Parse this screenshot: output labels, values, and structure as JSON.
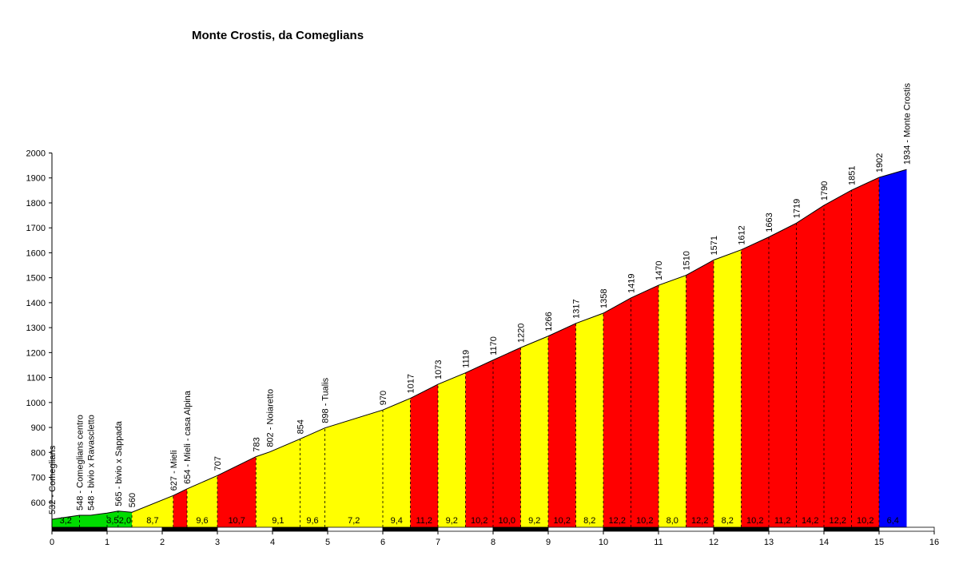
{
  "chart_data": {
    "type": "area",
    "title": "Monte Crostis, da Comeglians",
    "xlabel": "",
    "ylabel": "",
    "xlim": [
      0,
      16
    ],
    "ylim": [
      500,
      2000
    ],
    "x_ticks": [
      "0",
      "1",
      "2",
      "3",
      "4",
      "5",
      "6",
      "7",
      "8",
      "9",
      "10",
      "11",
      "12",
      "13",
      "14",
      "15",
      "16"
    ],
    "y_ticks": [
      "600",
      "700",
      "800",
      "900",
      "1000",
      "1100",
      "1200",
      "1300",
      "1400",
      "1500",
      "1600",
      "1700",
      "1800",
      "1900",
      "2000"
    ],
    "profile": [
      {
        "x": 0.0,
        "y": 532
      },
      {
        "x": 0.5,
        "y": 548
      },
      {
        "x": 0.7,
        "y": 548
      },
      {
        "x": 1.0,
        "y": 557
      },
      {
        "x": 1.2,
        "y": 565
      },
      {
        "x": 1.45,
        "y": 560
      },
      {
        "x": 2.2,
        "y": 627
      },
      {
        "x": 2.45,
        "y": 654
      },
      {
        "x": 3.0,
        "y": 707
      },
      {
        "x": 3.7,
        "y": 783
      },
      {
        "x": 3.95,
        "y": 802
      },
      {
        "x": 4.5,
        "y": 854
      },
      {
        "x": 4.95,
        "y": 898
      },
      {
        "x": 6.0,
        "y": 970
      },
      {
        "x": 6.5,
        "y": 1017
      },
      {
        "x": 7.0,
        "y": 1073
      },
      {
        "x": 7.5,
        "y": 1119
      },
      {
        "x": 8.0,
        "y": 1170
      },
      {
        "x": 8.5,
        "y": 1220
      },
      {
        "x": 9.0,
        "y": 1266
      },
      {
        "x": 9.5,
        "y": 1317
      },
      {
        "x": 10.0,
        "y": 1358
      },
      {
        "x": 10.5,
        "y": 1419
      },
      {
        "x": 11.0,
        "y": 1470
      },
      {
        "x": 11.5,
        "y": 1510
      },
      {
        "x": 12.0,
        "y": 1571
      },
      {
        "x": 12.5,
        "y": 1612
      },
      {
        "x": 13.0,
        "y": 1663
      },
      {
        "x": 13.5,
        "y": 1719
      },
      {
        "x": 14.0,
        "y": 1790
      },
      {
        "x": 14.5,
        "y": 1851
      },
      {
        "x": 15.0,
        "y": 1902
      },
      {
        "x": 15.5,
        "y": 1934
      }
    ],
    "segments": [
      {
        "x0": 0.0,
        "x1": 0.5,
        "color": "#00dd00",
        "grade": "3,2"
      },
      {
        "x0": 0.5,
        "x1": 1.0,
        "color": "#00dd00",
        "grade": ""
      },
      {
        "x0": 1.0,
        "x1": 1.2,
        "color": "#00dd00",
        "grade": "3,5"
      },
      {
        "x0": 1.2,
        "x1": 1.45,
        "color": "#00dd00",
        "grade": "2,0"
      },
      {
        "x0": 1.45,
        "x1": 2.2,
        "color": "#ffff00",
        "grade": "8,7"
      },
      {
        "x0": 2.2,
        "x1": 2.45,
        "color": "#ff0000",
        "grade": ""
      },
      {
        "x0": 2.45,
        "x1": 3.0,
        "color": "#ffff00",
        "grade": "9,6"
      },
      {
        "x0": 3.0,
        "x1": 3.7,
        "color": "#ff0000",
        "grade": "10,7"
      },
      {
        "x0": 3.7,
        "x1": 4.5,
        "color": "#ffff00",
        "grade": "9,1"
      },
      {
        "x0": 4.5,
        "x1": 4.95,
        "color": "#ffff00",
        "grade": "9,6"
      },
      {
        "x0": 4.95,
        "x1": 6.0,
        "color": "#ffff00",
        "grade": "7,2"
      },
      {
        "x0": 6.0,
        "x1": 6.5,
        "color": "#ffff00",
        "grade": "9,4"
      },
      {
        "x0": 6.5,
        "x1": 7.0,
        "color": "#ff0000",
        "grade": "11,2"
      },
      {
        "x0": 7.0,
        "x1": 7.5,
        "color": "#ffff00",
        "grade": "9,2"
      },
      {
        "x0": 7.5,
        "x1": 8.0,
        "color": "#ff0000",
        "grade": "10,2"
      },
      {
        "x0": 8.0,
        "x1": 8.5,
        "color": "#ff0000",
        "grade": "10,0"
      },
      {
        "x0": 8.5,
        "x1": 9.0,
        "color": "#ffff00",
        "grade": "9,2"
      },
      {
        "x0": 9.0,
        "x1": 9.5,
        "color": "#ff0000",
        "grade": "10,2"
      },
      {
        "x0": 9.5,
        "x1": 10.0,
        "color": "#ffff00",
        "grade": "8,2"
      },
      {
        "x0": 10.0,
        "x1": 10.5,
        "color": "#ff0000",
        "grade": "12,2"
      },
      {
        "x0": 10.5,
        "x1": 11.0,
        "color": "#ff0000",
        "grade": "10,2"
      },
      {
        "x0": 11.0,
        "x1": 11.5,
        "color": "#ffff00",
        "grade": "8,0"
      },
      {
        "x0": 11.5,
        "x1": 12.0,
        "color": "#ff0000",
        "grade": "12,2"
      },
      {
        "x0": 12.0,
        "x1": 12.5,
        "color": "#ffff00",
        "grade": "8,2"
      },
      {
        "x0": 12.5,
        "x1": 13.0,
        "color": "#ff0000",
        "grade": "10,2"
      },
      {
        "x0": 13.0,
        "x1": 13.5,
        "color": "#ff0000",
        "grade": "11,2"
      },
      {
        "x0": 13.5,
        "x1": 14.0,
        "color": "#ff0000",
        "grade": "14,2"
      },
      {
        "x0": 14.0,
        "x1": 14.5,
        "color": "#ff0000",
        "grade": "12,2"
      },
      {
        "x0": 14.5,
        "x1": 15.0,
        "color": "#ff0000",
        "grade": "10,2"
      },
      {
        "x0": 15.0,
        "x1": 15.5,
        "color": "#0000ff",
        "grade": "6,4"
      }
    ],
    "point_labels": [
      {
        "x": 0.0,
        "text": "532 - Comeglians"
      },
      {
        "x": 0.5,
        "text": "548 - Comeglians centro"
      },
      {
        "x": 0.7,
        "text": "548 - bivio x Ravascletto"
      },
      {
        "x": 1.2,
        "text": "565 - bivio x Sappada"
      },
      {
        "x": 1.45,
        "text": "560"
      },
      {
        "x": 2.2,
        "text": "627 - Mieli"
      },
      {
        "x": 2.45,
        "text": "654 - Mieli - casa Alpina"
      },
      {
        "x": 3.0,
        "text": "707"
      },
      {
        "x": 3.7,
        "text": "783"
      },
      {
        "x": 3.95,
        "text": "802 - Noiaretto"
      },
      {
        "x": 4.5,
        "text": "854"
      },
      {
        "x": 4.95,
        "text": "898 - Tualis"
      },
      {
        "x": 6.0,
        "text": "970"
      },
      {
        "x": 6.5,
        "text": "1017"
      },
      {
        "x": 7.0,
        "text": "1073"
      },
      {
        "x": 7.5,
        "text": "1119"
      },
      {
        "x": 8.0,
        "text": "1170"
      },
      {
        "x": 8.5,
        "text": "1220"
      },
      {
        "x": 9.0,
        "text": "1266"
      },
      {
        "x": 9.5,
        "text": "1317"
      },
      {
        "x": 10.0,
        "text": "1358"
      },
      {
        "x": 10.5,
        "text": "1419"
      },
      {
        "x": 11.0,
        "text": "1470"
      },
      {
        "x": 11.5,
        "text": "1510"
      },
      {
        "x": 12.0,
        "text": "1571"
      },
      {
        "x": 12.5,
        "text": "1612"
      },
      {
        "x": 13.0,
        "text": "1663"
      },
      {
        "x": 13.5,
        "text": "1719"
      },
      {
        "x": 14.0,
        "text": "1790"
      },
      {
        "x": 14.5,
        "text": "1851"
      },
      {
        "x": 15.0,
        "text": "1902"
      },
      {
        "x": 15.5,
        "text": "1934 - Monte Crostis"
      }
    ]
  }
}
